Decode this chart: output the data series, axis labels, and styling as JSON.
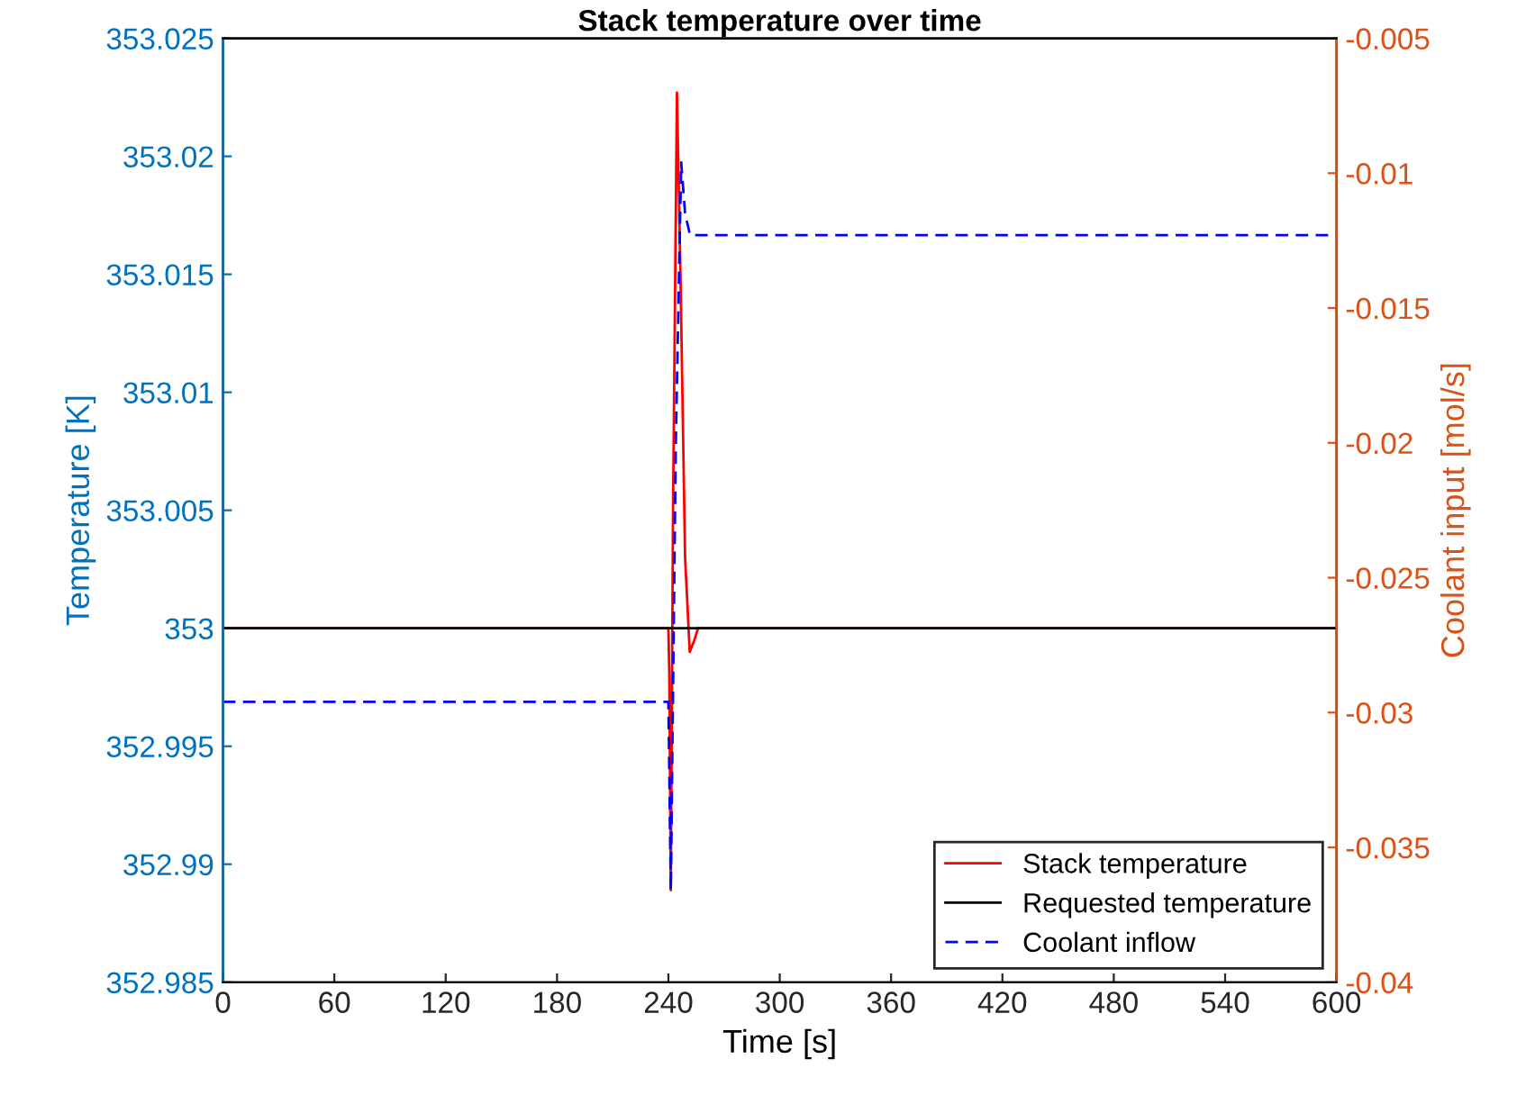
{
  "chart_data": {
    "type": "line",
    "title": "Stack temperature over time",
    "xlabel": "Time [s]",
    "ylabel": "Temperature [K]",
    "y2label": "Coolant input [mol/s]",
    "xlim": [
      0,
      600
    ],
    "xticks": [
      0,
      60,
      120,
      180,
      240,
      300,
      360,
      420,
      480,
      540,
      600
    ],
    "ylim": [
      352.985,
      353.025
    ],
    "yticks": [
      352.985,
      352.99,
      352.995,
      353,
      353.005,
      353.01,
      353.015,
      353.02,
      353.025
    ],
    "y2lim": [
      -0.04,
      -0.005
    ],
    "y2ticks": [
      -0.04,
      -0.035,
      -0.03,
      -0.025,
      -0.02,
      -0.015,
      -0.01,
      -0.005
    ],
    "grid": false,
    "legend": "bottom right",
    "series": [
      {
        "name": "Stack temperature",
        "color": "#ff0000",
        "line_style": "solid",
        "x": [
          0,
          240,
          240.5,
          241.3,
          242.5,
          244.6,
          246.5,
          249,
          251.5,
          254,
          256,
          600
        ],
        "values": [
          353,
          353,
          352.998,
          352.9889,
          353.005,
          353.0227,
          353.015,
          353.003,
          352.999,
          352.9995,
          353,
          353
        ]
      },
      {
        "name": "Requested temperature",
        "color": "#000000",
        "line_style": "solid",
        "x": [
          0,
          600
        ],
        "values": [
          353,
          353
        ]
      },
      {
        "name": "Coolant inflow",
        "color": "#0000ff",
        "line_style": "dashed",
        "axis": "y2",
        "x": [
          0,
          240,
          241.3,
          244,
          246.9,
          249,
          251.7,
          600
        ],
        "values": [
          -0.0296,
          -0.0296,
          -0.0366,
          -0.02,
          -0.0096,
          -0.0115,
          -0.0123,
          -0.0123
        ]
      }
    ]
  }
}
